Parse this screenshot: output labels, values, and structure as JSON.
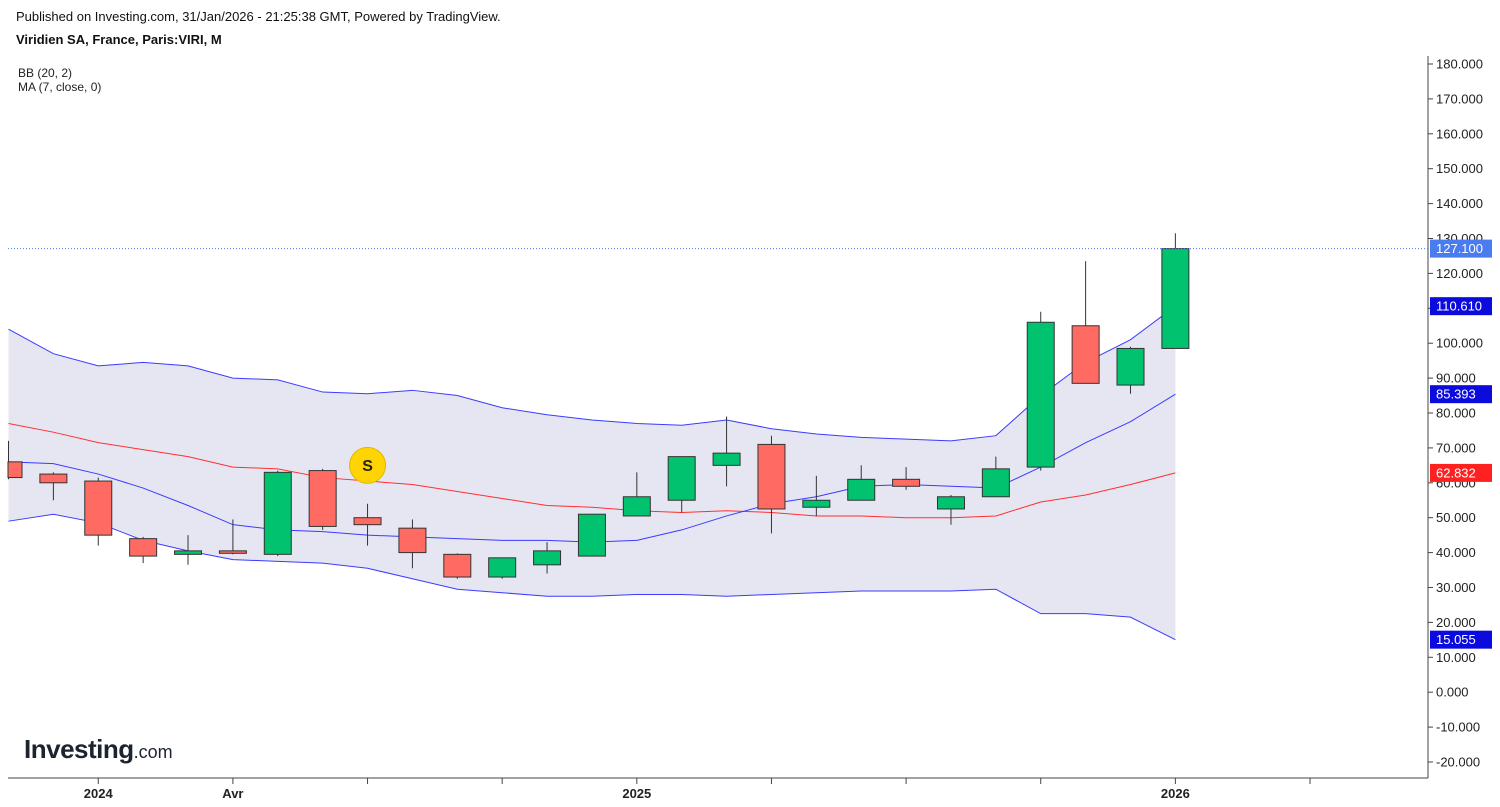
{
  "header": {
    "published": "Published on Investing.com, 31/Jan/2026 - 21:25:38 GMT, Powered by TradingView.",
    "symbol": "Viridien SA, France, Paris:VIRI, M"
  },
  "legend": {
    "bb": "BB (20, 2)",
    "ma": "MA (7, close, 0)"
  },
  "logo": {
    "main": "Investing",
    "suffix": ".com"
  },
  "marker": {
    "label": "S",
    "color": "#ffd400"
  },
  "chart_data": {
    "type": "candlestick",
    "y_axis": {
      "min": -20,
      "max": 180,
      "step": 10,
      "tick_labels": [
        "180.000",
        "170.000",
        "160.000",
        "150.000",
        "140.000",
        "130.000",
        "120.000",
        "110.000",
        "100.000",
        "90.000",
        "80.000",
        "70.000",
        "60.000",
        "50.000",
        "40.000",
        "30.000",
        "20.000",
        "10.000",
        "0.000",
        "-10.000",
        "-20.000"
      ]
    },
    "x_axis": {
      "labels": [
        {
          "text": "2024",
          "index": 2
        },
        {
          "text": "Avr",
          "index": 5
        },
        {
          "text": "2025",
          "index": 14
        },
        {
          "text": "2026",
          "index": 26
        }
      ]
    },
    "colors": {
      "up": "#00c26f",
      "down": "#ff6b62",
      "bb_line": "#3b3bff",
      "bb_fill": "#e6e6f2",
      "ma_line": "#ff3030",
      "last_price": "#4a7cf0",
      "bb_badge": "#0b0bdd",
      "ma_badge": "#ff2020"
    },
    "candles": [
      {
        "o": 66.0,
        "h": 72.0,
        "l": 61.0,
        "c": 61.5
      },
      {
        "o": 62.5,
        "h": 63.0,
        "l": 55.0,
        "c": 60.0
      },
      {
        "o": 60.5,
        "h": 61.5,
        "l": 42.0,
        "c": 45.0
      },
      {
        "o": 44.0,
        "h": 44.5,
        "l": 37.0,
        "c": 39.0
      },
      {
        "o": 39.5,
        "h": 45.0,
        "l": 36.5,
        "c": 40.5
      },
      {
        "o": 40.5,
        "h": 49.5,
        "l": 39.5,
        "c": 39.8
      },
      {
        "o": 39.5,
        "h": 63.5,
        "l": 39.0,
        "c": 63.0
      },
      {
        "o": 63.5,
        "h": 64.0,
        "l": 46.5,
        "c": 47.5
      },
      {
        "o": 50.0,
        "h": 54.0,
        "l": 42.0,
        "c": 48.0
      },
      {
        "o": 47.0,
        "h": 49.5,
        "l": 35.5,
        "c": 40.0
      },
      {
        "o": 39.5,
        "h": 39.8,
        "l": 32.5,
        "c": 33.0
      },
      {
        "o": 33.0,
        "h": 38.5,
        "l": 32.5,
        "c": 38.5
      },
      {
        "o": 36.5,
        "h": 43.0,
        "l": 34.0,
        "c": 40.5
      },
      {
        "o": 39.0,
        "h": 51.0,
        "l": 39.0,
        "c": 51.0
      },
      {
        "o": 50.5,
        "h": 63.0,
        "l": 50.5,
        "c": 56.0
      },
      {
        "o": 55.0,
        "h": 67.5,
        "l": 51.5,
        "c": 67.5
      },
      {
        "o": 65.0,
        "h": 79.0,
        "l": 59.0,
        "c": 68.5
      },
      {
        "o": 71.0,
        "h": 73.5,
        "l": 45.5,
        "c": 52.5
      },
      {
        "o": 53.0,
        "h": 62.0,
        "l": 50.5,
        "c": 55.0
      },
      {
        "o": 55.0,
        "h": 65.0,
        "l": 55.0,
        "c": 61.0
      },
      {
        "o": 61.0,
        "h": 64.5,
        "l": 58.0,
        "c": 59.0
      },
      {
        "o": 52.5,
        "h": 56.5,
        "l": 48.0,
        "c": 56.0
      },
      {
        "o": 56.0,
        "h": 67.5,
        "l": 56.0,
        "c": 64.0
      },
      {
        "o": 64.5,
        "h": 109.0,
        "l": 63.5,
        "c": 106.0
      },
      {
        "o": 105.0,
        "h": 123.5,
        "l": 88.5,
        "c": 88.5
      },
      {
        "o": 88.0,
        "h": 99.0,
        "l": 85.5,
        "c": 98.5
      },
      {
        "o": 98.5,
        "h": 131.5,
        "l": 98.5,
        "c": 127.1
      }
    ],
    "bb_upper": [
      104.0,
      97.0,
      93.5,
      94.5,
      93.5,
      90.0,
      89.5,
      86.0,
      85.5,
      86.5,
      85.0,
      81.5,
      79.5,
      78.0,
      77.0,
      76.5,
      78.0,
      75.5,
      74.0,
      73.0,
      72.5,
      72.0,
      73.5,
      85.0,
      94.5,
      101.0,
      110.61
    ],
    "bb_middle": [
      77.0,
      74.5,
      71.5,
      69.5,
      67.5,
      64.5,
      64.0,
      61.5,
      60.5,
      59.5,
      57.5,
      55.5,
      53.5,
      53.0,
      52.0,
      51.5,
      52.0,
      51.5,
      50.5,
      50.5,
      50.0,
      50.0,
      50.5,
      54.5,
      56.5,
      59.5,
      62.832
    ],
    "bb_lower": [
      49.0,
      51.0,
      48.5,
      43.5,
      40.5,
      38.0,
      37.5,
      37.0,
      35.5,
      32.5,
      29.5,
      28.5,
      27.5,
      27.5,
      28.0,
      28.0,
      27.5,
      28.0,
      28.5,
      29.0,
      29.0,
      29.0,
      29.5,
      22.5,
      22.5,
      21.5,
      15.055
    ],
    "ma": [
      66.0,
      65.5,
      62.5,
      58.5,
      53.5,
      48.0,
      46.5,
      46.0,
      45.0,
      44.5,
      44.0,
      43.5,
      43.5,
      43.0,
      43.5,
      46.5,
      50.5,
      54.0,
      56.0,
      59.0,
      59.5,
      59.0,
      58.5,
      64.5,
      71.5,
      77.5,
      85.393
    ],
    "badges": [
      {
        "value": 127.1,
        "text": "127.100",
        "type": "last"
      },
      {
        "value": 110.61,
        "text": "110.610",
        "type": "bb"
      },
      {
        "value": 85.393,
        "text": "85.393",
        "type": "bb"
      },
      {
        "value": 62.832,
        "text": "62.832",
        "type": "ma"
      },
      {
        "value": 15.055,
        "text": "15.055",
        "type": "bb"
      }
    ],
    "signal_index": 8,
    "signal_value": 65.0
  }
}
